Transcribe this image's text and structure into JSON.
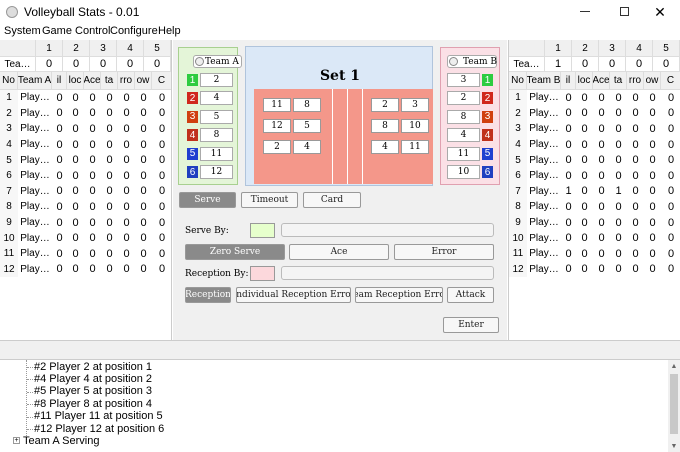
{
  "window": {
    "title": "Volleyball Stats - 0.01"
  },
  "menu": [
    "System",
    "Game Control",
    "Configure",
    "Help"
  ],
  "left_table": {
    "set_header": [
      1,
      2,
      3,
      4,
      5
    ],
    "score_label": "Tea…",
    "scores": [
      0,
      0,
      0,
      0,
      0
    ],
    "columns": [
      "No",
      "Team A",
      "il",
      "loc",
      "Ace",
      "ta",
      "rro",
      "ow",
      "C"
    ],
    "rows": [
      [
        1,
        "Play…",
        0,
        0,
        0,
        0,
        0,
        0,
        0
      ],
      [
        2,
        "Play…",
        0,
        0,
        0,
        0,
        0,
        0,
        0
      ],
      [
        3,
        "Play…",
        0,
        0,
        0,
        0,
        0,
        0,
        0
      ],
      [
        4,
        "Play…",
        0,
        0,
        0,
        0,
        0,
        0,
        0
      ],
      [
        5,
        "Play…",
        0,
        0,
        0,
        0,
        0,
        0,
        0
      ],
      [
        6,
        "Play…",
        0,
        0,
        0,
        0,
        0,
        0,
        0
      ],
      [
        7,
        "Play…",
        0,
        0,
        0,
        0,
        0,
        0,
        0
      ],
      [
        8,
        "Play…",
        0,
        0,
        0,
        0,
        0,
        0,
        0
      ],
      [
        9,
        "Play…",
        0,
        0,
        0,
        0,
        0,
        0,
        0
      ],
      [
        10,
        "Play…",
        0,
        0,
        0,
        0,
        0,
        0,
        0
      ],
      [
        11,
        "Play…",
        0,
        0,
        0,
        0,
        0,
        0,
        0
      ],
      [
        12,
        "Play…",
        0,
        0,
        0,
        0,
        0,
        0,
        0
      ]
    ]
  },
  "right_table": {
    "set_header": [
      1,
      2,
      3,
      4,
      5
    ],
    "score_label": "Tea…",
    "scores": [
      1,
      0,
      0,
      0,
      0
    ],
    "columns": [
      "No",
      "Team B",
      "il",
      "loc",
      "Ace",
      "ta",
      "rro",
      "ow",
      "C"
    ],
    "rows": [
      [
        1,
        "Play…",
        0,
        0,
        0,
        0,
        0,
        0,
        0
      ],
      [
        2,
        "Play…",
        0,
        0,
        0,
        0,
        0,
        0,
        0
      ],
      [
        3,
        "Play…",
        0,
        0,
        0,
        0,
        0,
        0,
        0
      ],
      [
        4,
        "Play…",
        0,
        0,
        0,
        0,
        0,
        0,
        0
      ],
      [
        5,
        "Play…",
        0,
        0,
        0,
        0,
        0,
        0,
        0
      ],
      [
        6,
        "Play…",
        0,
        0,
        0,
        0,
        0,
        0,
        0
      ],
      [
        7,
        "Play…",
        1,
        0,
        0,
        1,
        0,
        0,
        0
      ],
      [
        8,
        "Play…",
        0,
        0,
        0,
        0,
        0,
        0,
        0
      ],
      [
        9,
        "Play…",
        0,
        0,
        0,
        0,
        0,
        0,
        0
      ],
      [
        10,
        "Play…",
        0,
        0,
        0,
        0,
        0,
        0,
        0
      ],
      [
        11,
        "Play…",
        0,
        0,
        0,
        0,
        0,
        0,
        0
      ],
      [
        12,
        "Play…",
        0,
        0,
        0,
        0,
        0,
        0,
        0
      ]
    ]
  },
  "team_a": {
    "name": "Team A",
    "positions": [
      1,
      2,
      3,
      4,
      5,
      6
    ],
    "players": [
      2,
      4,
      5,
      8,
      11,
      12
    ]
  },
  "team_b": {
    "name": "Team B",
    "positions": [
      1,
      2,
      3,
      4,
      5,
      6
    ],
    "players": [
      3,
      2,
      8,
      4,
      11,
      10
    ]
  },
  "court": {
    "title": "Set 1",
    "left": [
      [
        11,
        8
      ],
      [
        12,
        5
      ],
      [
        2,
        4
      ]
    ],
    "right": [
      [
        2,
        3
      ],
      [
        8,
        10
      ],
      [
        4,
        11
      ]
    ]
  },
  "actions": [
    "Serve",
    "Timeout",
    "Card"
  ],
  "serve": {
    "label": "Serve By:",
    "buttons": [
      "Zero Serve",
      "Ace",
      "Error"
    ]
  },
  "reception": {
    "label": "Reception By:",
    "buttons": [
      "Reception",
      "ndividual Reception Erro",
      "eam Reception Erro",
      "Attack"
    ]
  },
  "enter": "Enter",
  "log": {
    "lines": [
      "#2 Player 2 at position 1",
      "#4 Player 4 at position 2",
      "#5 Player 5 at position 3",
      "#8 Player 8 at position 4",
      "#11 Player 11 at position 5",
      "#12 Player 12 at position 6"
    ],
    "group": "Team A Serving"
  }
}
